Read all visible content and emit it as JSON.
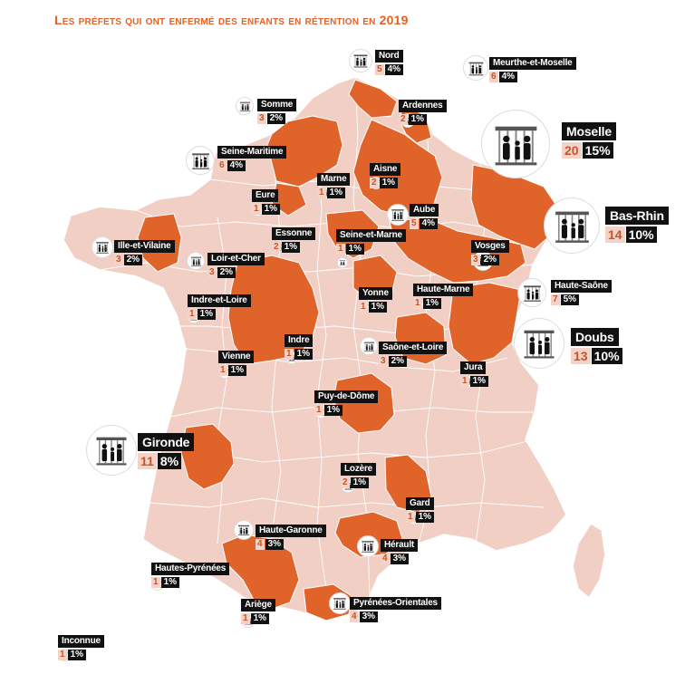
{
  "title": "Les préfets qui ont enfermé des enfants en rétention en 2019",
  "colors": {
    "highlight": "#e0632a",
    "base": "#f1cfc5",
    "border": "#ffffff",
    "label_bg": "#111111",
    "count_bg": "#f3d2c8"
  },
  "departements": [
    {
      "id": "nord",
      "name": "Nord",
      "count": "5",
      "pct": "4%",
      "icon": "family-cage-icon"
    },
    {
      "id": "meurthe-et-moselle",
      "name": "Meurthe-et-Moselle",
      "count": "6",
      "pct": "4%",
      "icon": "family-cage-icon"
    },
    {
      "id": "somme",
      "name": "Somme",
      "count": "3",
      "pct": "2%",
      "icon": "family-cage-icon"
    },
    {
      "id": "ardennes",
      "name": "Ardennes",
      "count": "2",
      "pct": "1%",
      "icon": "family-cage-icon"
    },
    {
      "id": "moselle",
      "name": "Moselle",
      "count": "20",
      "pct": "15%",
      "icon": "family-cage-icon"
    },
    {
      "id": "seine-maritime",
      "name": "Seine-Maritime",
      "count": "6",
      "pct": "4%",
      "icon": "family-cage-icon"
    },
    {
      "id": "aisne",
      "name": "Aisne",
      "count": "2",
      "pct": "1%",
      "icon": "family-cage-icon"
    },
    {
      "id": "marne",
      "name": "Marne",
      "count": "1",
      "pct": "1%",
      "icon": "family-cage-icon"
    },
    {
      "id": "eure",
      "name": "Eure",
      "count": "1",
      "pct": "1%",
      "icon": "family-cage-icon"
    },
    {
      "id": "aube",
      "name": "Aube",
      "count": "5",
      "pct": "4%",
      "icon": "family-cage-icon"
    },
    {
      "id": "bas-rhin",
      "name": "Bas-Rhin",
      "count": "14",
      "pct": "10%",
      "icon": "family-cage-icon"
    },
    {
      "id": "essonne",
      "name": "Essonne",
      "count": "2",
      "pct": "1%",
      "icon": "family-cage-icon"
    },
    {
      "id": "seine-et-marne",
      "name": "Seine-et-Marne",
      "count": "1",
      "pct": "1%",
      "icon": "family-cage-icon"
    },
    {
      "id": "ille-et-vilaine",
      "name": "Ille-et-Vilaine",
      "count": "3",
      "pct": "2%",
      "icon": "family-cage-icon"
    },
    {
      "id": "loir-et-cher",
      "name": "Loir-et-Cher",
      "count": "3",
      "pct": "2%",
      "icon": "family-cage-icon"
    },
    {
      "id": "vosges",
      "name": "Vosges",
      "count": "3",
      "pct": "2%",
      "icon": "family-cage-icon"
    },
    {
      "id": "haute-saone",
      "name": "Haute-Saône",
      "count": "7",
      "pct": "5%",
      "icon": "family-cage-icon"
    },
    {
      "id": "haute-marne",
      "name": "Haute-Marne",
      "count": "1",
      "pct": "1%",
      "icon": "family-cage-icon"
    },
    {
      "id": "yonne",
      "name": "Yonne",
      "count": "1",
      "pct": "1%",
      "icon": "family-cage-icon"
    },
    {
      "id": "indre-et-loire",
      "name": "Indre-et-Loire",
      "count": "1",
      "pct": "1%",
      "icon": "family-cage-icon"
    },
    {
      "id": "doubs",
      "name": "Doubs",
      "count": "13",
      "pct": "10%",
      "icon": "family-cage-icon"
    },
    {
      "id": "indre",
      "name": "Indre",
      "count": "1",
      "pct": "1%",
      "icon": "family-cage-icon"
    },
    {
      "id": "saone-et-loire",
      "name": "Saône-et-Loire",
      "count": "3",
      "pct": "2%",
      "icon": "family-cage-icon"
    },
    {
      "id": "vienne",
      "name": "Vienne",
      "count": "1",
      "pct": "1%",
      "icon": "family-cage-icon"
    },
    {
      "id": "jura",
      "name": "Jura",
      "count": "1",
      "pct": "1%",
      "icon": "family-cage-icon"
    },
    {
      "id": "puy-de-dome",
      "name": "Puy-de-Dôme",
      "count": "1",
      "pct": "1%",
      "icon": "family-cage-icon"
    },
    {
      "id": "gironde",
      "name": "Gironde",
      "count": "11",
      "pct": "8%",
      "icon": "family-cage-icon"
    },
    {
      "id": "lozere",
      "name": "Lozère",
      "count": "2",
      "pct": "1%",
      "icon": "family-cage-icon"
    },
    {
      "id": "gard",
      "name": "Gard",
      "count": "1",
      "pct": "1%",
      "icon": "family-cage-icon"
    },
    {
      "id": "haute-garonne",
      "name": "Haute-Garonne",
      "count": "4",
      "pct": "3%",
      "icon": "family-cage-icon"
    },
    {
      "id": "herault",
      "name": "Hérault",
      "count": "4",
      "pct": "3%",
      "icon": "family-cage-icon"
    },
    {
      "id": "hautes-pyrenees",
      "name": "Hautes-Pyrénées",
      "count": "1",
      "pct": "1%",
      "icon": "family-cage-icon"
    },
    {
      "id": "ariege",
      "name": "Ariège",
      "count": "1",
      "pct": "1%",
      "icon": "family-cage-icon"
    },
    {
      "id": "pyrenees-orientales",
      "name": "Pyrénées-Orientales",
      "count": "4",
      "pct": "3%",
      "icon": "family-cage-icon"
    },
    {
      "id": "inconnue",
      "name": "Inconnue",
      "count": "1",
      "pct": "1%",
      "icon": "family-cage-icon"
    }
  ]
}
